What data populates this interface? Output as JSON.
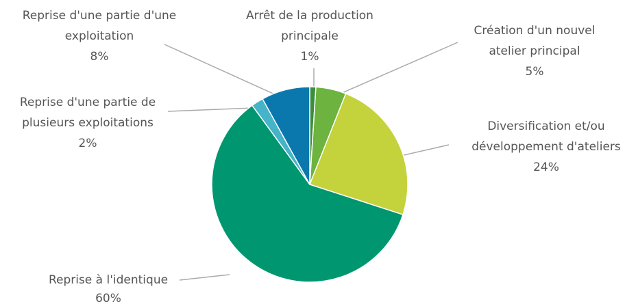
{
  "chart_data": {
    "type": "pie",
    "categories": [
      "Arrêt de la production principale",
      "Création d'un nouvel atelier principal",
      "Diversification et/ou développement d'ateliers",
      "Reprise à l'identique",
      "Reprise d'une partie de plusieurs exploitations",
      "Reprise d'une partie d'une exploitation"
    ],
    "values": [
      1,
      5,
      24,
      60,
      2,
      8
    ],
    "value_labels": [
      "1%",
      "5%",
      "24%",
      "60%",
      "2%",
      "8%"
    ],
    "colors": [
      "#3a8d3c",
      "#6db33f",
      "#c4d23b",
      "#00966f",
      "#45b4c9",
      "#0b78ad"
    ]
  }
}
